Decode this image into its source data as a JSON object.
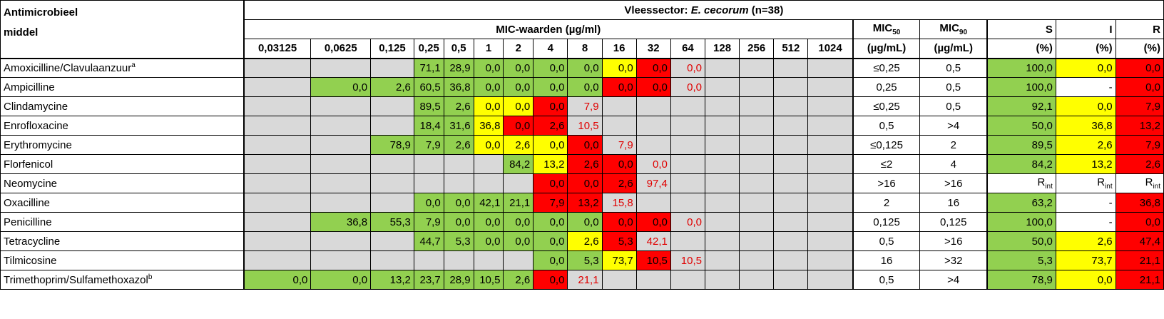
{
  "header": {
    "agent_label_1": "Antimicrobieel",
    "agent_label_2": "middel",
    "sector": "Vleessector:",
    "organism": "E. cecorum",
    "n": "(n=38)",
    "mic_title": "MIC-waarden (µg/ml)",
    "concentrations": [
      "0,03125",
      "0,0625",
      "0,125",
      "0,25",
      "0,5",
      "1",
      "2",
      "4",
      "8",
      "16",
      "32",
      "64",
      "128",
      "256",
      "512",
      "1024"
    ],
    "mic50_label": "MIC",
    "mic50_sub": "50",
    "mic90_label": "MIC",
    "mic90_sub": "90",
    "mic_unit": "(µg/mL)",
    "s_label": "S",
    "i_label": "I",
    "r_label": "R",
    "pct": "(%)"
  },
  "rows": [
    {
      "agent": "Amoxicilline/Clavulaanzuur",
      "sup": "a",
      "cells": [
        [
          "",
          "gr"
        ],
        [
          "",
          "gr"
        ],
        [
          "",
          "gr"
        ],
        [
          "71,1",
          "g"
        ],
        [
          "28,9",
          "g"
        ],
        [
          "0,0",
          "g"
        ],
        [
          "0,0",
          "g"
        ],
        [
          "0,0",
          "g"
        ],
        [
          "0,0",
          "g"
        ],
        [
          "0,0",
          "y"
        ],
        [
          "0,0",
          "r"
        ],
        [
          "0,0",
          "rt"
        ],
        [
          "",
          "gr"
        ],
        [
          "",
          "gr"
        ],
        [
          "",
          "gr"
        ],
        [
          "",
          "gr"
        ]
      ],
      "mic50": "≤0,25",
      "mic90": "0,5",
      "s": [
        "100,0",
        "g"
      ],
      "i": [
        "0,0",
        "y"
      ],
      "r": [
        "0,0",
        "r"
      ]
    },
    {
      "agent": "Ampicilline",
      "sup": "",
      "cells": [
        [
          "",
          "gr"
        ],
        [
          "0,0",
          "g"
        ],
        [
          "2,6",
          "g"
        ],
        [
          "60,5",
          "g"
        ],
        [
          "36,8",
          "g"
        ],
        [
          "0,0",
          "g"
        ],
        [
          "0,0",
          "g"
        ],
        [
          "0,0",
          "g"
        ],
        [
          "0,0",
          "g"
        ],
        [
          "0,0",
          "r"
        ],
        [
          "0,0",
          "r"
        ],
        [
          "0,0",
          "rt"
        ],
        [
          "",
          "gr"
        ],
        [
          "",
          "gr"
        ],
        [
          "",
          "gr"
        ],
        [
          "",
          "gr"
        ]
      ],
      "mic50": "0,25",
      "mic90": "0,5",
      "s": [
        "100,0",
        "g"
      ],
      "i": [
        "-",
        "w"
      ],
      "r": [
        "0,0",
        "r"
      ]
    },
    {
      "agent": "Clindamycine",
      "sup": "",
      "cells": [
        [
          "",
          "gr"
        ],
        [
          "",
          "gr"
        ],
        [
          "",
          "gr"
        ],
        [
          "89,5",
          "g"
        ],
        [
          "2,6",
          "g"
        ],
        [
          "0,0",
          "y"
        ],
        [
          "0,0",
          "y"
        ],
        [
          "0,0",
          "r"
        ],
        [
          "7,9",
          "rt"
        ],
        [
          "",
          "gr"
        ],
        [
          "",
          "gr"
        ],
        [
          "",
          "gr"
        ],
        [
          "",
          "gr"
        ],
        [
          "",
          "gr"
        ],
        [
          "",
          "gr"
        ],
        [
          "",
          "gr"
        ]
      ],
      "mic50": "≤0,25",
      "mic90": "0,5",
      "s": [
        "92,1",
        "g"
      ],
      "i": [
        "0,0",
        "y"
      ],
      "r": [
        "7,9",
        "r"
      ]
    },
    {
      "agent": "Enrofloxacine",
      "sup": "",
      "cells": [
        [
          "",
          "gr"
        ],
        [
          "",
          "gr"
        ],
        [
          "",
          "gr"
        ],
        [
          "18,4",
          "g"
        ],
        [
          "31,6",
          "g"
        ],
        [
          "36,8",
          "y"
        ],
        [
          "0,0",
          "r"
        ],
        [
          "2,6",
          "r"
        ],
        [
          "10,5",
          "rt"
        ],
        [
          "",
          "gr"
        ],
        [
          "",
          "gr"
        ],
        [
          "",
          "gr"
        ],
        [
          "",
          "gr"
        ],
        [
          "",
          "gr"
        ],
        [
          "",
          "gr"
        ],
        [
          "",
          "gr"
        ]
      ],
      "mic50": "0,5",
      "mic90": ">4",
      "s": [
        "50,0",
        "g"
      ],
      "i": [
        "36,8",
        "y"
      ],
      "r": [
        "13,2",
        "r"
      ]
    },
    {
      "agent": "Erythromycine",
      "sup": "",
      "cells": [
        [
          "",
          "gr"
        ],
        [
          "",
          "gr"
        ],
        [
          "78,9",
          "g"
        ],
        [
          "7,9",
          "g"
        ],
        [
          "2,6",
          "g"
        ],
        [
          "0,0",
          "y"
        ],
        [
          "2,6",
          "y"
        ],
        [
          "0,0",
          "y"
        ],
        [
          "0,0",
          "r"
        ],
        [
          "7,9",
          "rt"
        ],
        [
          "",
          "gr"
        ],
        [
          "",
          "gr"
        ],
        [
          "",
          "gr"
        ],
        [
          "",
          "gr"
        ],
        [
          "",
          "gr"
        ],
        [
          "",
          "gr"
        ]
      ],
      "mic50": "≤0,125",
      "mic90": "2",
      "s": [
        "89,5",
        "g"
      ],
      "i": [
        "2,6",
        "y"
      ],
      "r": [
        "7,9",
        "r"
      ]
    },
    {
      "agent": "Florfenicol",
      "sup": "",
      "cells": [
        [
          "",
          "gr"
        ],
        [
          "",
          "gr"
        ],
        [
          "",
          "gr"
        ],
        [
          "",
          "gr"
        ],
        [
          "",
          "gr"
        ],
        [
          "",
          "gr"
        ],
        [
          "84,2",
          "g"
        ],
        [
          "13,2",
          "y"
        ],
        [
          "2,6",
          "r"
        ],
        [
          "0,0",
          "r"
        ],
        [
          "0,0",
          "rt"
        ],
        [
          "",
          "gr"
        ],
        [
          "",
          "gr"
        ],
        [
          "",
          "gr"
        ],
        [
          "",
          "gr"
        ],
        [
          "",
          "gr"
        ]
      ],
      "mic50": "≤2",
      "mic90": "4",
      "s": [
        "84,2",
        "g"
      ],
      "i": [
        "13,2",
        "y"
      ],
      "r": [
        "2,6",
        "r"
      ]
    },
    {
      "agent": "Neomycine",
      "sup": "",
      "cells": [
        [
          "",
          "gr"
        ],
        [
          "",
          "gr"
        ],
        [
          "",
          "gr"
        ],
        [
          "",
          "gr"
        ],
        [
          "",
          "gr"
        ],
        [
          "",
          "gr"
        ],
        [
          "",
          "gr"
        ],
        [
          "0,0",
          "r"
        ],
        [
          "0,0",
          "r"
        ],
        [
          "2,6",
          "r"
        ],
        [
          "97,4",
          "rt"
        ],
        [
          "",
          "gr"
        ],
        [
          "",
          "gr"
        ],
        [
          "",
          "gr"
        ],
        [
          "",
          "gr"
        ],
        [
          "",
          "gr"
        ]
      ],
      "mic50": ">16",
      "mic90": ">16",
      "s": [
        "R",
        "int"
      ],
      "i": [
        "R",
        "int"
      ],
      "r": [
        "R",
        "int"
      ]
    },
    {
      "agent": "Oxacilline",
      "sup": "",
      "cells": [
        [
          "",
          "gr"
        ],
        [
          "",
          "gr"
        ],
        [
          "",
          "gr"
        ],
        [
          "0,0",
          "g"
        ],
        [
          "0,0",
          "g"
        ],
        [
          "42,1",
          "g"
        ],
        [
          "21,1",
          "g"
        ],
        [
          "7,9",
          "r"
        ],
        [
          "13,2",
          "r"
        ],
        [
          "15,8",
          "rt"
        ],
        [
          "",
          "gr"
        ],
        [
          "",
          "gr"
        ],
        [
          "",
          "gr"
        ],
        [
          "",
          "gr"
        ],
        [
          "",
          "gr"
        ],
        [
          "",
          "gr"
        ]
      ],
      "mic50": "2",
      "mic90": "16",
      "s": [
        "63,2",
        "g"
      ],
      "i": [
        "-",
        "w"
      ],
      "r": [
        "36,8",
        "r"
      ]
    },
    {
      "agent": "Penicilline",
      "sup": "",
      "cells": [
        [
          "",
          "gr"
        ],
        [
          "36,8",
          "g"
        ],
        [
          "55,3",
          "g"
        ],
        [
          "7,9",
          "g"
        ],
        [
          "0,0",
          "g"
        ],
        [
          "0,0",
          "g"
        ],
        [
          "0,0",
          "g"
        ],
        [
          "0,0",
          "g"
        ],
        [
          "0,0",
          "g"
        ],
        [
          "0,0",
          "r"
        ],
        [
          "0,0",
          "r"
        ],
        [
          "0,0",
          "rt"
        ],
        [
          "",
          "gr"
        ],
        [
          "",
          "gr"
        ],
        [
          "",
          "gr"
        ],
        [
          "",
          "gr"
        ]
      ],
      "mic50": "0,125",
      "mic90": "0,125",
      "s": [
        "100,0",
        "g"
      ],
      "i": [
        "-",
        "w"
      ],
      "r": [
        "0,0",
        "r"
      ]
    },
    {
      "agent": "Tetracycline",
      "sup": "",
      "cells": [
        [
          "",
          "gr"
        ],
        [
          "",
          "gr"
        ],
        [
          "",
          "gr"
        ],
        [
          "44,7",
          "g"
        ],
        [
          "5,3",
          "g"
        ],
        [
          "0,0",
          "g"
        ],
        [
          "0,0",
          "g"
        ],
        [
          "0,0",
          "g"
        ],
        [
          "2,6",
          "y"
        ],
        [
          "5,3",
          "r"
        ],
        [
          "42,1",
          "rt"
        ],
        [
          "",
          "gr"
        ],
        [
          "",
          "gr"
        ],
        [
          "",
          "gr"
        ],
        [
          "",
          "gr"
        ],
        [
          "",
          "gr"
        ]
      ],
      "mic50": "0,5",
      "mic90": ">16",
      "s": [
        "50,0",
        "g"
      ],
      "i": [
        "2,6",
        "y"
      ],
      "r": [
        "47,4",
        "r"
      ]
    },
    {
      "agent": "Tilmicosine",
      "sup": "",
      "cells": [
        [
          "",
          "gr"
        ],
        [
          "",
          "gr"
        ],
        [
          "",
          "gr"
        ],
        [
          "",
          "gr"
        ],
        [
          "",
          "gr"
        ],
        [
          "",
          "gr"
        ],
        [
          "",
          "gr"
        ],
        [
          "0,0",
          "g"
        ],
        [
          "5,3",
          "g"
        ],
        [
          "73,7",
          "y"
        ],
        [
          "10,5",
          "r"
        ],
        [
          "10,5",
          "rt"
        ],
        [
          "",
          "gr"
        ],
        [
          "",
          "gr"
        ],
        [
          "",
          "gr"
        ],
        [
          "",
          "gr"
        ]
      ],
      "mic50": "16",
      "mic90": ">32",
      "s": [
        "5,3",
        "g"
      ],
      "i": [
        "73,7",
        "y"
      ],
      "r": [
        "21,1",
        "r"
      ]
    },
    {
      "agent": "Trimethoprim/Sulfamethoxazol",
      "sup": "b",
      "cells": [
        [
          "0,0",
          "g"
        ],
        [
          "0,0",
          "g"
        ],
        [
          "13,2",
          "g"
        ],
        [
          "23,7",
          "g"
        ],
        [
          "28,9",
          "g"
        ],
        [
          "10,5",
          "g"
        ],
        [
          "2,6",
          "g"
        ],
        [
          "0,0",
          "r"
        ],
        [
          "21,1",
          "rt"
        ],
        [
          "",
          "gr"
        ],
        [
          "",
          "gr"
        ],
        [
          "",
          "gr"
        ],
        [
          "",
          "gr"
        ],
        [
          "",
          "gr"
        ],
        [
          "",
          "gr"
        ],
        [
          "",
          "gr"
        ]
      ],
      "mic50": "0,5",
      "mic90": ">4",
      "s": [
        "78,9",
        "g"
      ],
      "i": [
        "0,0",
        "y"
      ],
      "r": [
        "21,1",
        "r"
      ]
    }
  ],
  "colors": {
    "susceptible": "#92d050",
    "intermediate": "#ffff00",
    "resistant": "#ff0000",
    "not_tested": "#d9d9d9"
  }
}
